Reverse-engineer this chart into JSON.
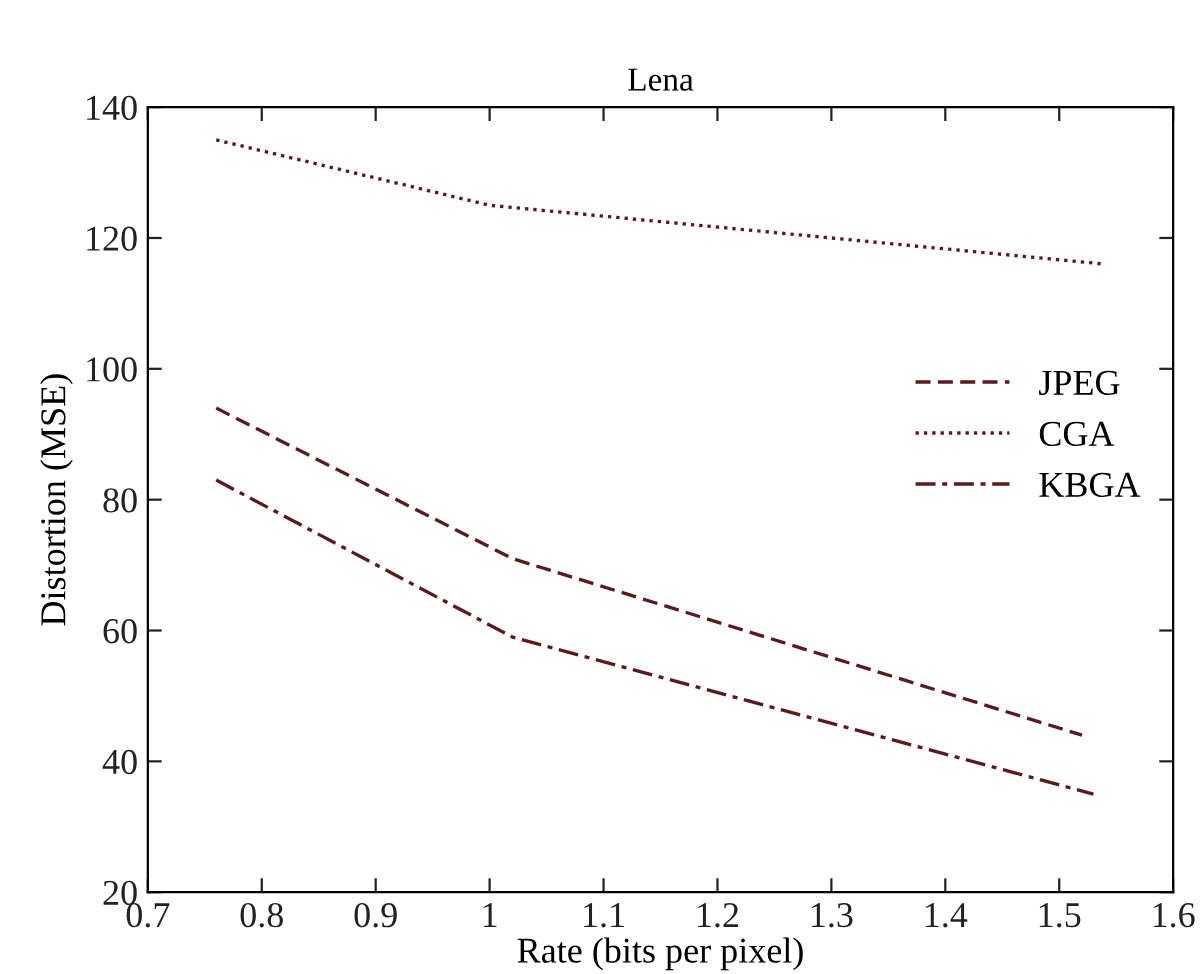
{
  "chart_data": {
    "type": "line",
    "title": "Lena",
    "xlabel": "Rate (bits per pixel)",
    "ylabel": "Distortion (MSE)",
    "xlim": [
      0.7,
      1.6
    ],
    "xticks": [
      0.7,
      0.8,
      0.9,
      {
        "value": 1.0,
        "label": "1"
      },
      1.1,
      1.2,
      1.3,
      1.4,
      1.5,
      1.6
    ],
    "ylim": [
      20,
      140
    ],
    "yticks": [
      20,
      40,
      60,
      80,
      100,
      120,
      140
    ],
    "grid": false,
    "legend": "right",
    "marker": "none",
    "series": [
      {
        "name": "JPEG",
        "color": "#5c1a1e",
        "line_style": "dashed",
        "x": [
          0.76,
          1.02,
          1.52
        ],
        "values": [
          94,
          71,
          44
        ]
      },
      {
        "name": "CGA",
        "color": "#5c1a1e",
        "line_style": "dotted",
        "x": [
          0.76,
          1.0,
          1.54
        ],
        "values": [
          135,
          125,
          116
        ]
      },
      {
        "name": "KBGA",
        "color": "#5c1a1e",
        "line_style": "dashdot",
        "x": [
          0.76,
          1.02,
          1.53
        ],
        "values": [
          83,
          59,
          35
        ]
      }
    ]
  }
}
